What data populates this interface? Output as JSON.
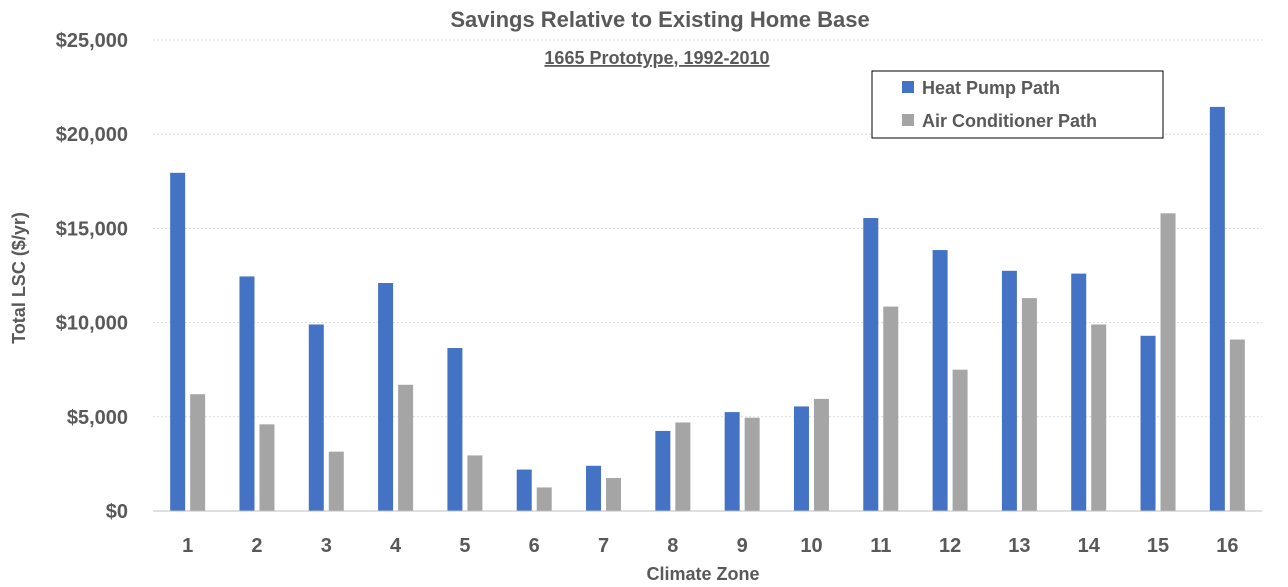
{
  "chart_data": {
    "type": "bar",
    "title": "Savings Relative to Existing Home Base",
    "subtitle": "1665 Prototype, 1992-2010",
    "xlabel": "Climate Zone",
    "ylabel": "Total LSC ($/yr)",
    "categories": [
      "1",
      "2",
      "3",
      "4",
      "5",
      "6",
      "7",
      "8",
      "9",
      "10",
      "11",
      "12",
      "13",
      "14",
      "15",
      "16"
    ],
    "ylim": [
      0,
      25000
    ],
    "yticks": [
      0,
      5000,
      10000,
      15000,
      20000,
      25000
    ],
    "ytick_labels": [
      "$0",
      "$5,000",
      "$10,000",
      "$15,000",
      "$20,000",
      "$25,000"
    ],
    "grid": true,
    "legend_position": "top-right",
    "series": [
      {
        "name": "Heat Pump Path",
        "color": "#4472C4",
        "values": [
          17950,
          12450,
          9900,
          12100,
          8650,
          2200,
          2400,
          4250,
          5250,
          5550,
          15550,
          13850,
          12750,
          12600,
          9300,
          21450
        ]
      },
      {
        "name": "Air Conditioner Path",
        "color": "#A5A5A5",
        "values": [
          6200,
          4600,
          3150,
          6700,
          2950,
          1250,
          1750,
          4700,
          4950,
          5950,
          10850,
          7500,
          11300,
          9900,
          15800,
          9100
        ]
      }
    ]
  }
}
